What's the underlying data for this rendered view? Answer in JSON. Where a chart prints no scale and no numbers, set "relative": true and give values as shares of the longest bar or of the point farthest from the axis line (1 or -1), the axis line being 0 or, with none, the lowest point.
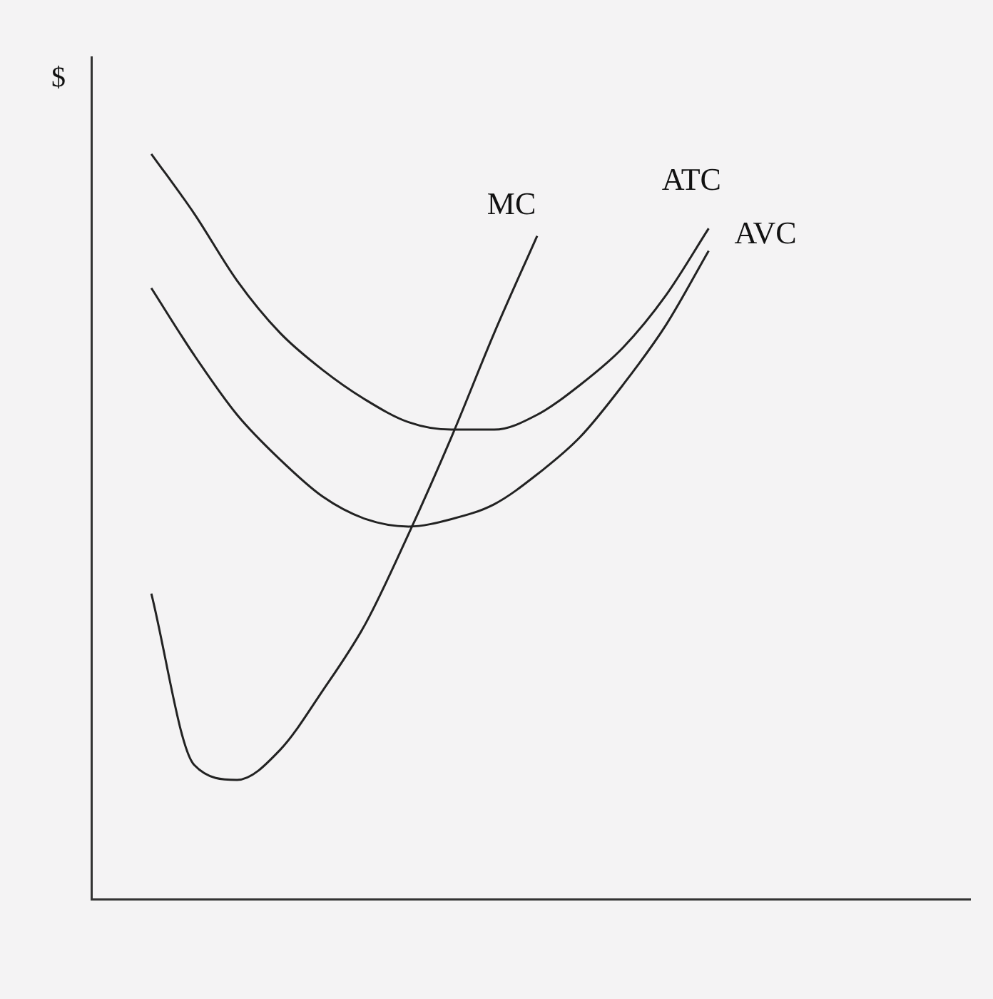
{
  "chart_data": {
    "type": "line",
    "ylabel": "$",
    "relative": true,
    "grid": false,
    "legend": false,
    "marker": "none",
    "line_style": "solid",
    "categories": [
      null,
      null,
      null,
      null,
      null,
      null,
      null,
      null,
      null,
      null,
      null,
      null,
      null,
      null
    ],
    "series": [
      {
        "name": "MC",
        "color": "#222222",
        "values": [
          0.41,
          0.18,
          0.16,
          0.2,
          0.28,
          0.37,
          0.49,
          0.62,
          0.76,
          0.89,
          null,
          null,
          null,
          null
        ]
      },
      {
        "name": "ATC",
        "color": "#222222",
        "values": [
          1.0,
          0.92,
          0.83,
          0.76,
          0.71,
          0.67,
          0.64,
          0.63,
          0.63,
          0.65,
          0.69,
          0.74,
          0.81,
          0.9
        ]
      },
      {
        "name": "AVC",
        "color": "#222222",
        "values": [
          0.82,
          0.73,
          0.65,
          0.59,
          0.54,
          0.51,
          0.5,
          0.51,
          0.53,
          0.57,
          0.62,
          0.69,
          0.77,
          0.87
        ]
      }
    ]
  }
}
